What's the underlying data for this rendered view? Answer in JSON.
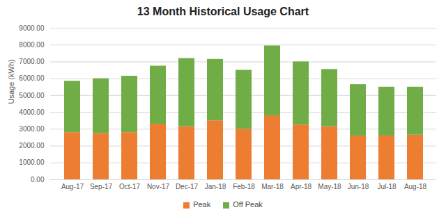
{
  "chart_data": {
    "type": "bar",
    "title": "13 Month Historical Usage Chart",
    "y_label": "Usage (kWh)",
    "categories": [
      "Aug-17",
      "Sep-17",
      "Oct-17",
      "Nov-17",
      "Dec-17",
      "Jan-18",
      "Feb-18",
      "Mar-18",
      "Apr-18",
      "May-18",
      "Jun-18",
      "Jul-18",
      "Aug-18"
    ],
    "series": [
      {
        "name": "Peak",
        "color": "#ed7d31",
        "values": [
          2800,
          2750,
          2800,
          3300,
          3150,
          3500,
          3000,
          3800,
          3250,
          3150,
          2600,
          2600,
          2650
        ]
      },
      {
        "name": "Off Peak",
        "color": "#70ad47",
        "values": [
          3050,
          3250,
          3350,
          3450,
          4050,
          3650,
          3500,
          4150,
          3750,
          3400,
          3050,
          2900,
          2850
        ]
      }
    ],
    "stacked": true,
    "ylim": [
      0,
      9000
    ],
    "yticks": [
      {
        "value": 0,
        "label": "0.00"
      },
      {
        "value": 1000,
        "label": "1000.00"
      },
      {
        "value": 2000,
        "label": "2000.00"
      },
      {
        "value": 3000,
        "label": "3000.00"
      },
      {
        "value": 4000,
        "label": "4000.00"
      },
      {
        "value": 5000,
        "label": "5000.00"
      },
      {
        "value": 6000,
        "label": "6000.00"
      },
      {
        "value": 7000,
        "label": "7000.00"
      },
      {
        "value": 8000,
        "label": "8000.00"
      },
      {
        "value": 9000,
        "label": "9000.00"
      }
    ],
    "grid": true,
    "legend": "bottom"
  }
}
